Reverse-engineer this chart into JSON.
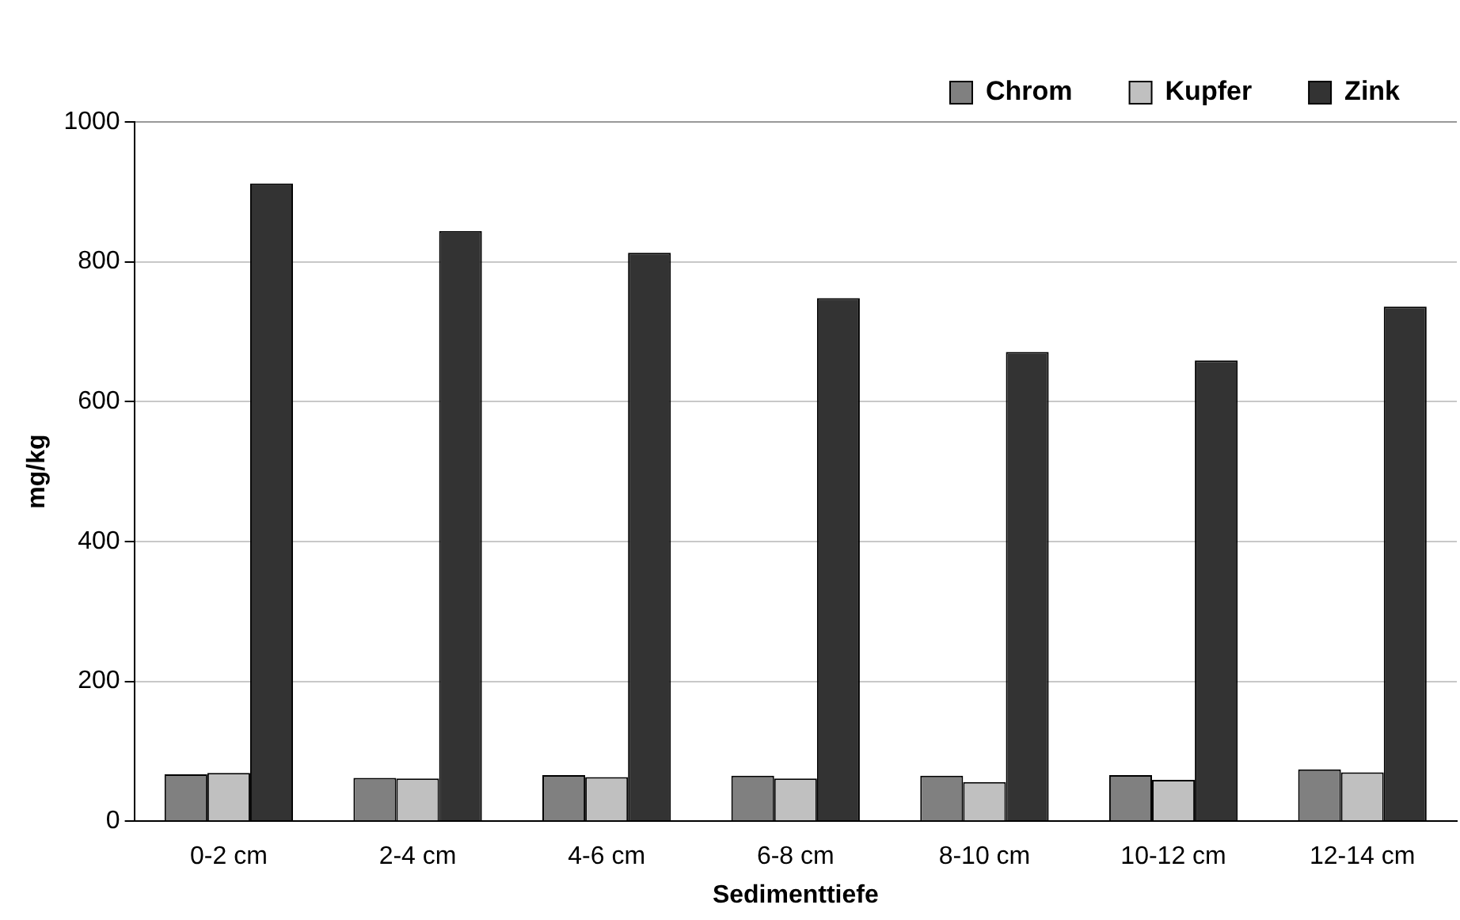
{
  "chart_data": {
    "type": "bar",
    "xlabel": "Sedimenttiefe",
    "ylabel": "mg/kg",
    "categories": [
      "0-2 cm",
      "2-4 cm",
      "4-6 cm",
      "6-8 cm",
      "8-10 cm",
      "10-12 cm",
      "12-14 cm"
    ],
    "series": [
      {
        "name": "Chrom",
        "color": "#808080",
        "values": [
          67,
          62,
          66,
          65,
          65,
          66,
          74
        ]
      },
      {
        "name": "Kupfer",
        "color": "#c0c0c0",
        "values": [
          69,
          61,
          63,
          61,
          56,
          59,
          70
        ]
      },
      {
        "name": "Zink",
        "color": "#333333",
        "values": [
          912,
          844,
          813,
          748,
          671,
          659,
          736
        ]
      }
    ],
    "ylim": [
      0,
      1000
    ],
    "yticks": [
      0,
      200,
      400,
      600,
      800,
      1000
    ],
    "grid": "y",
    "legend": "top right"
  }
}
